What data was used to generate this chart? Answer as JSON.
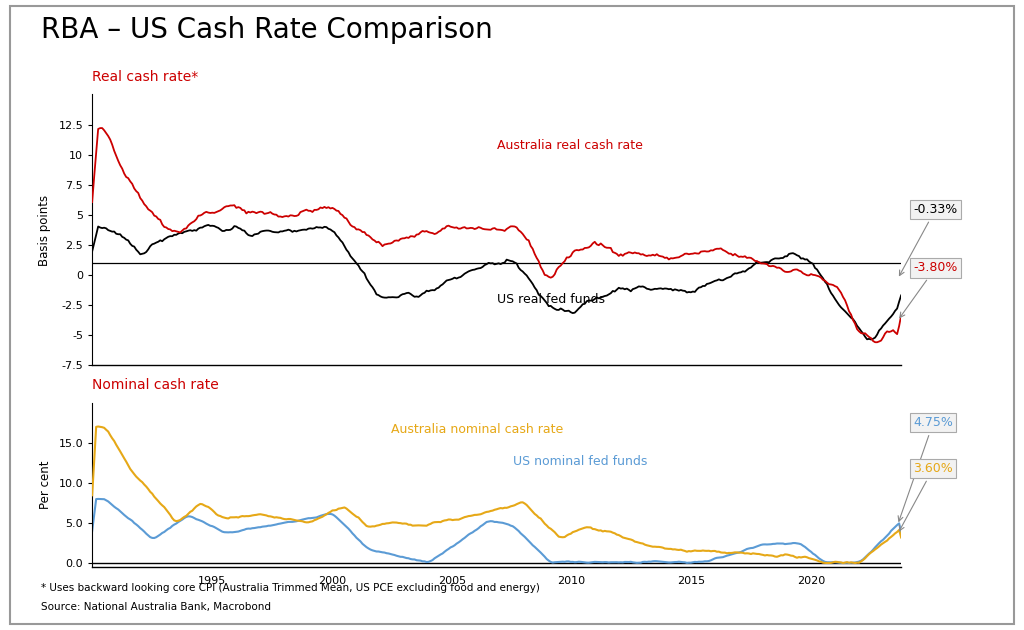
{
  "title": "RBA – US Cash Rate Comparison",
  "title_color": "#000000",
  "title_fontsize": 20,
  "subtitle_real": "Real cash rate*",
  "subtitle_nominal": "Nominal cash rate",
  "subtitle_color": "#cc0000",
  "ylabel_real": "Basis points",
  "ylabel_nominal": "Per cent",
  "footnote1": "* Uses backward looking core CPI (Australia Trimmed Mean, US PCE excluding food and energy)",
  "footnote2": "Source: National Australia Bank, Macrobond",
  "aus_real_label": "Australia real cash rate",
  "us_real_label": "US real fed funds",
  "aus_nominal_label": "Australia nominal cash rate",
  "us_nominal_label": "US nominal fed funds",
  "aus_real_color": "#cc0000",
  "us_real_color": "#000000",
  "aus_nominal_color": "#e6a817",
  "us_nominal_color": "#5b9bd5",
  "end_label_aus_real": "-3.80%",
  "end_label_us_real": "-0.33%",
  "end_label_aus_nominal": "3.60%",
  "end_label_us_nominal": "4.75%",
  "end_label_aus_real_color": "#cc0000",
  "end_label_us_real_color": "#000000",
  "end_label_aus_nominal_color": "#e6a817",
  "end_label_us_nominal_color": "#5b9bd5",
  "ylim_real": [
    -7.5,
    15.0
  ],
  "ylim_nominal": [
    -0.5,
    20.0
  ],
  "yticks_real": [
    -7.5,
    -5.0,
    -2.5,
    0.0,
    2.5,
    5.0,
    7.5,
    10.0,
    12.5
  ],
  "yticks_nominal": [
    0.0,
    5.0,
    10.0,
    15.0
  ],
  "hline_real": 1.0,
  "background_color": "#ffffff",
  "box_facecolor": "#f2f2f2",
  "box_edgecolor": "#aaaaaa",
  "fig_border_color": "#999999"
}
